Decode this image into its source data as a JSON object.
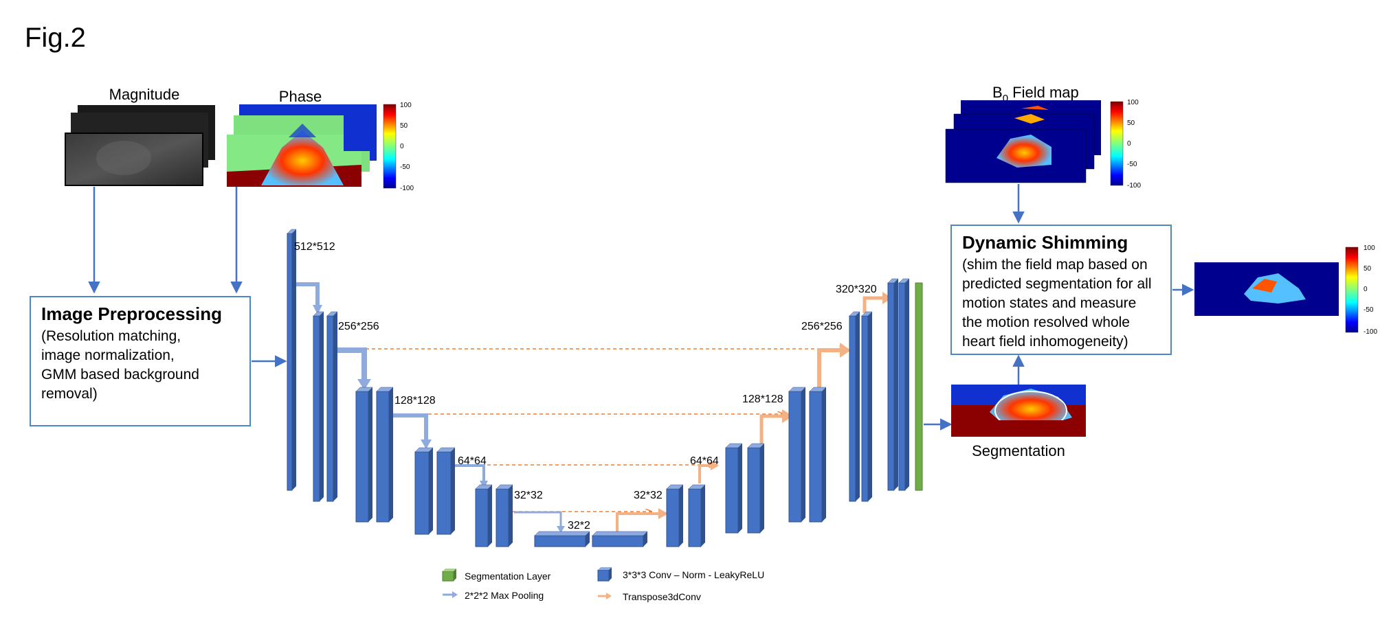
{
  "figure_label": "Fig.2",
  "inputs": {
    "magnitude_label": "Magnitude",
    "phase_label": "Phase"
  },
  "colorbars": {
    "ticks": [
      "100",
      "50",
      "0",
      "-50",
      "-100"
    ]
  },
  "preprocessing": {
    "title": "Image Preprocessing",
    "lines": [
      "(Resolution matching,",
      "image normalization,",
      "GMM based background",
      "removal)"
    ]
  },
  "field_map": {
    "label_main": "B",
    "label_sub": "0",
    "label_rest": " Field map"
  },
  "shimming": {
    "title": "Dynamic Shimming",
    "lines": [
      "(shim the field map based on",
      "predicted segmentation for all",
      "motion states and measure",
      "the motion resolved whole",
      "heart field inhomogeneity)"
    ]
  },
  "segmentation_label": "Segmentation",
  "unet": {
    "encoder_sizes": [
      "512*512",
      "256*256",
      "128*128",
      "64*64",
      "32*32",
      "32*2"
    ],
    "decoder_sizes": [
      "32*32",
      "64*64",
      "128*128",
      "256*256",
      "320*320"
    ]
  },
  "legend": {
    "segmentation_layer": "Segmentation Layer",
    "max_pooling": "2*2*2 Max Pooling",
    "conv": "3*3*3 Conv – Norm - LeakyReLU",
    "transpose": "Transpose3dConv"
  },
  "colors": {
    "block": "#4472c4",
    "block_dark": "#2f528f",
    "pool_arrow": "#8faadc",
    "up_arrow": "#f4b183",
    "skip": "#ed7d31",
    "seg_layer": "#70ad47",
    "box_border": "#4a86c8",
    "flow_arrow": "#4472c4"
  }
}
